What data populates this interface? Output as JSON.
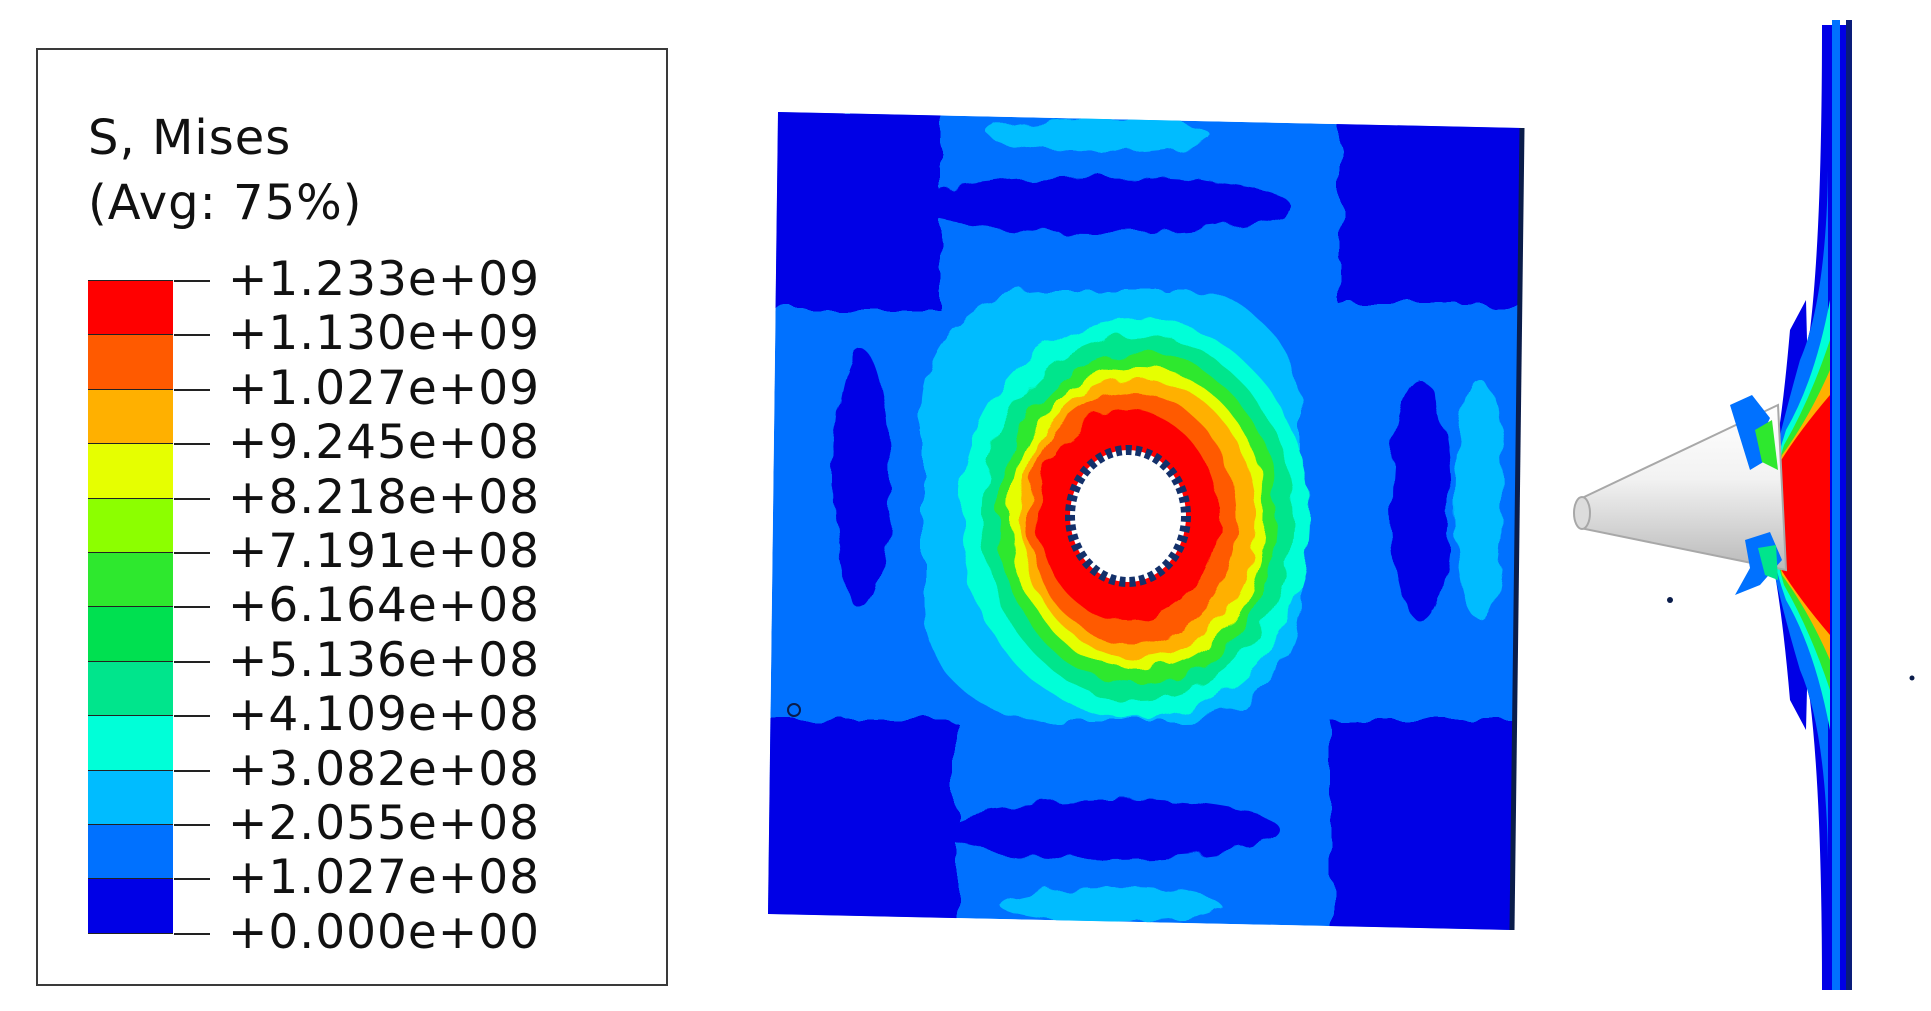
{
  "legend": {
    "title": "S, Mises",
    "subtitle": "(Avg: 75%)",
    "levels": [
      "+1.233e+09",
      "+1.130e+09",
      "+1.027e+09",
      "+9.245e+08",
      "+8.218e+08",
      "+7.191e+08",
      "+6.164e+08",
      "+5.136e+08",
      "+4.109e+08",
      "+3.082e+08",
      "+2.055e+08",
      "+1.027e+08",
      "+0.000e+00"
    ],
    "colors": [
      "#ff0000",
      "#ff5a00",
      "#ffb000",
      "#e6ff00",
      "#8cff00",
      "#2ee82e",
      "#00e050",
      "#00e58c",
      "#00ffd8",
      "#00bcff",
      "#0071ff",
      "#0000e6"
    ]
  }
}
